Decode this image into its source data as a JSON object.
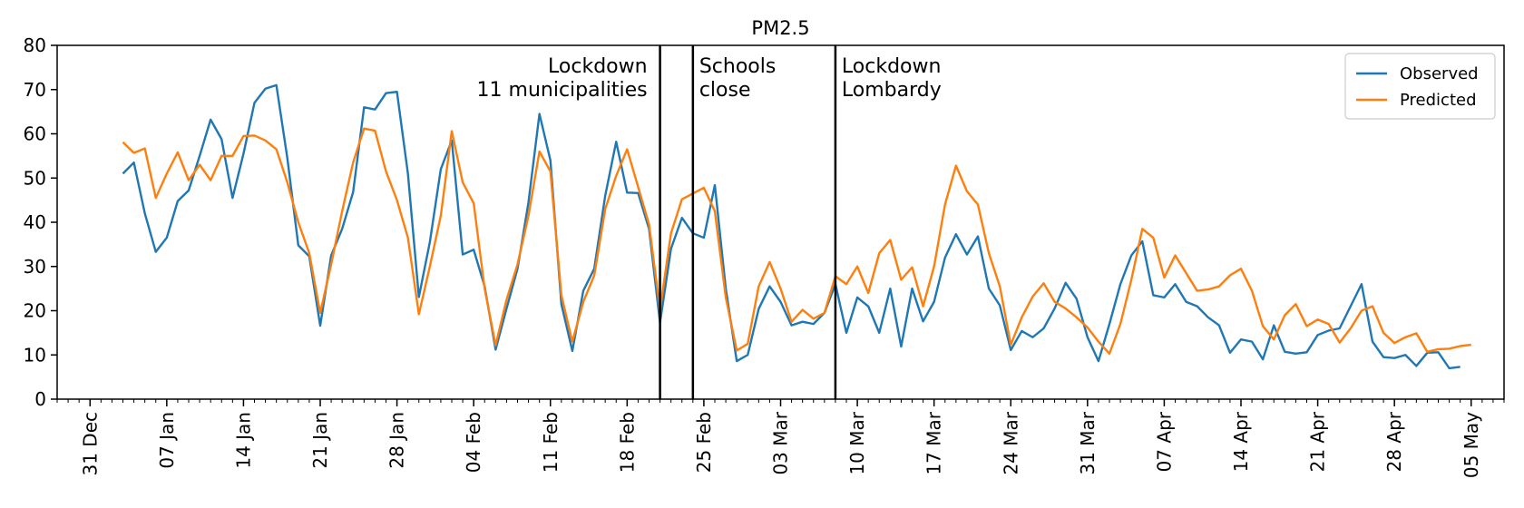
{
  "chart_data": {
    "type": "line",
    "title": "PM2.5",
    "xlabel": "",
    "ylabel": "",
    "x_start": "2019-12-31",
    "xlim": [
      "2019-12-28",
      "2020-05-08"
    ],
    "ylim": [
      0,
      80
    ],
    "yticks": [
      0,
      10,
      20,
      30,
      40,
      50,
      60,
      70,
      80
    ],
    "xticks": [
      {
        "date": "2019-12-31",
        "label": "31 Dec"
      },
      {
        "date": "2020-01-07",
        "label": "07 Jan"
      },
      {
        "date": "2020-01-14",
        "label": "14 Jan"
      },
      {
        "date": "2020-01-21",
        "label": "21 Jan"
      },
      {
        "date": "2020-01-28",
        "label": "28 Jan"
      },
      {
        "date": "2020-02-04",
        "label": "04 Feb"
      },
      {
        "date": "2020-02-11",
        "label": "11 Feb"
      },
      {
        "date": "2020-02-18",
        "label": "18 Feb"
      },
      {
        "date": "2020-02-25",
        "label": "25 Feb"
      },
      {
        "date": "2020-03-03",
        "label": "03 Mar"
      },
      {
        "date": "2020-03-10",
        "label": "10 Mar"
      },
      {
        "date": "2020-03-17",
        "label": "17 Mar"
      },
      {
        "date": "2020-03-24",
        "label": "24 Mar"
      },
      {
        "date": "2020-03-31",
        "label": "31 Mar"
      },
      {
        "date": "2020-04-07",
        "label": "07 Apr"
      },
      {
        "date": "2020-04-14",
        "label": "14 Apr"
      },
      {
        "date": "2020-04-21",
        "label": "21 Apr"
      },
      {
        "date": "2020-04-28",
        "label": "28 Apr"
      },
      {
        "date": "2020-05-05",
        "label": "05 May"
      }
    ],
    "events": [
      {
        "date": "2020-02-21",
        "lines": [
          "Lockdown",
          "11 municipalities"
        ],
        "align": "right"
      },
      {
        "date": "2020-02-24",
        "lines": [
          "Schools",
          "close"
        ],
        "align": "left"
      },
      {
        "date": "2020-03-08",
        "lines": [
          "Lockdown",
          "Lombardy"
        ],
        "align": "left"
      }
    ],
    "legend_placement": "top-right",
    "grid": false,
    "series": [
      {
        "name": "Observed",
        "color": "#1f77b4",
        "x_start": "2020-01-03",
        "values": [
          51,
          53.5,
          42,
          33.3,
          36.5,
          44.8,
          47.2,
          55,
          63.2,
          58.8,
          45.5,
          55.5,
          67,
          70.2,
          71,
          54.5,
          34.8,
          32.3,
          16.6,
          32.5,
          38.5,
          46.8,
          66,
          65.5,
          69.2,
          69.5,
          51,
          23.1,
          35.5,
          52,
          58.5,
          32.7,
          33.8,
          25.5,
          11.2,
          20.5,
          29.5,
          44.5,
          64.5,
          54,
          21.5,
          10.9,
          24.5,
          29.5,
          46,
          58.2,
          46.7,
          46.6,
          38.5,
          17.3,
          34,
          41,
          37.5,
          36.5,
          48.4,
          25,
          8.6,
          10,
          20.4,
          25.5,
          22,
          16.7,
          17.5,
          17,
          19.5,
          26,
          15,
          23,
          21,
          15,
          25,
          11.9,
          25,
          17.6,
          22,
          32,
          37.3,
          32.7,
          36.8,
          25,
          21.2,
          11.1,
          15.4,
          14,
          16,
          20.5,
          26.3,
          22.7,
          14,
          8.6,
          17,
          26,
          32.5,
          35.7,
          23.5,
          23,
          26,
          22,
          21,
          18.5,
          16.7,
          10.5,
          13.5,
          13,
          9,
          16.7,
          10.7,
          10.3,
          10.6,
          14.5,
          15.5,
          16,
          21,
          26,
          13,
          9.5,
          9.3,
          10,
          7.5,
          10.5,
          10.6,
          7,
          7.3
        ]
      },
      {
        "name": "Predicted",
        "color": "#ff7f0e",
        "x_start": "2020-01-03",
        "values": [
          58.1,
          55.7,
          56.7,
          45.5,
          51,
          55.8,
          49.5,
          53,
          49.5,
          55,
          55,
          59.5,
          59.6,
          58.5,
          56.5,
          49,
          40,
          33,
          19.5,
          30.5,
          42.5,
          53.5,
          61.2,
          60.7,
          51.5,
          45,
          36.5,
          19.2,
          30,
          41.5,
          60.6,
          49,
          44.3,
          25,
          12.2,
          22.5,
          30.5,
          41.5,
          56,
          51.5,
          23.5,
          13,
          22,
          28,
          43,
          50.5,
          56.5,
          48,
          39.5,
          20.2,
          37.5,
          45.2,
          46.5,
          47.8,
          42.5,
          23,
          11,
          12.5,
          25.5,
          31,
          25,
          17.5,
          20.2,
          18.2,
          19.5,
          27.8,
          26,
          30,
          24,
          33,
          36,
          27,
          29.8,
          21,
          30,
          44,
          52.8,
          47,
          44,
          33,
          25.5,
          12.3,
          18.5,
          23.2,
          26.2,
          22,
          20.5,
          18.5,
          16.2,
          13,
          10.3,
          17,
          27,
          38.5,
          36.5,
          27.5,
          32.5,
          28.5,
          24.5,
          24.8,
          25.5,
          28,
          29.5,
          24.5,
          16.5,
          13.5,
          19,
          21.5,
          16.5,
          18,
          17,
          12.8,
          16,
          20,
          21,
          15,
          12.7,
          14,
          14.9,
          10.7,
          11.3,
          11.4,
          12,
          12.3
        ]
      }
    ]
  }
}
